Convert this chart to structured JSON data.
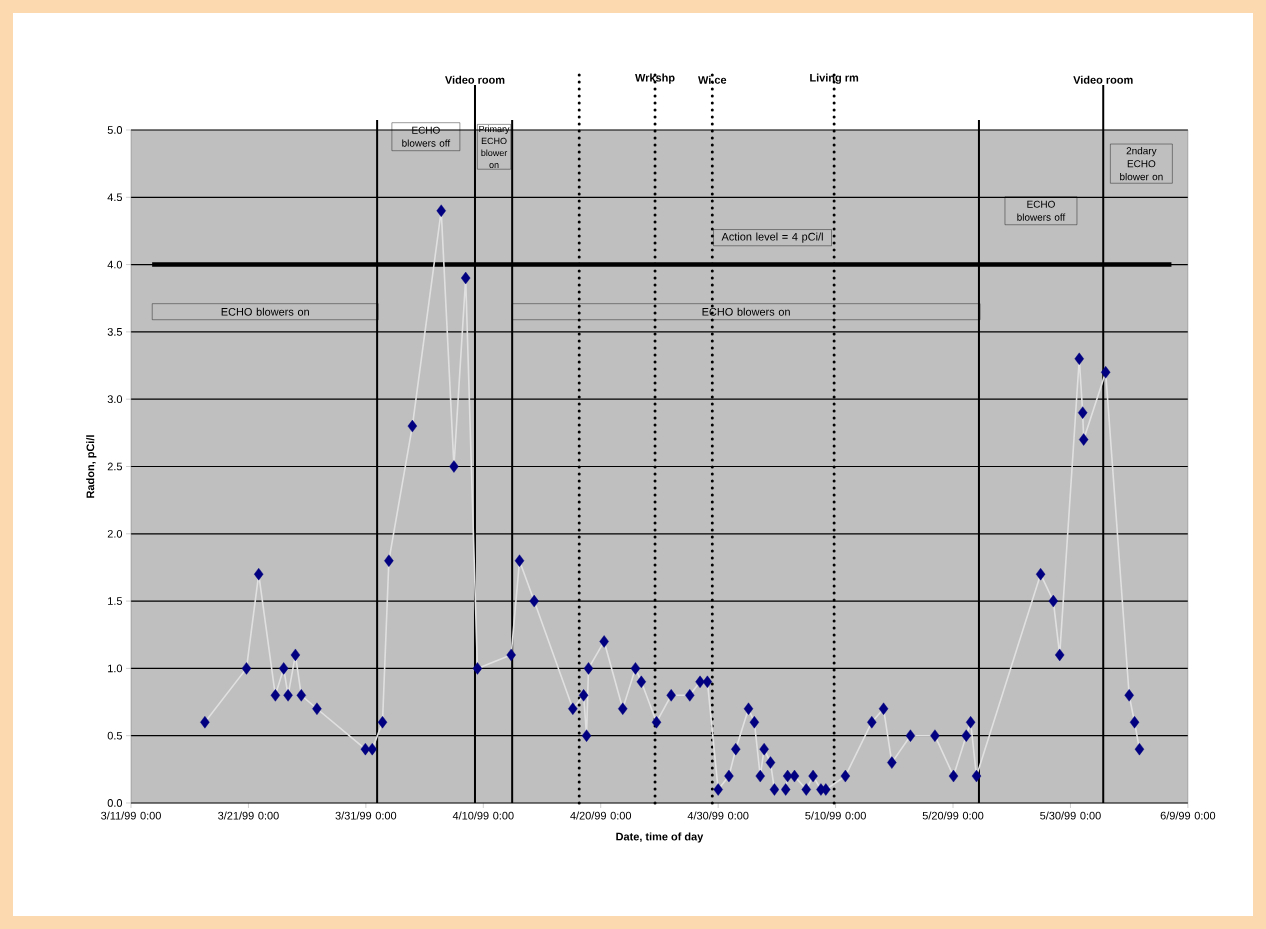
{
  "chart_data": {
    "type": "line",
    "xlabel": "Date, time of day",
    "ylabel": "Radon, pCi/l",
    "x": [
      "1999-03-17T07:00",
      "1999-03-20T20:00",
      "1999-03-21T21:00",
      "1999-03-23T07:00",
      "1999-03-24T00:00",
      "1999-03-24T09:00",
      "1999-03-25T00:00",
      "1999-03-25T12:00",
      "1999-03-26T20:00",
      "1999-03-30T23:00",
      "1999-03-31T13:00",
      "1999-04-01T10:00",
      "1999-04-01T23:00",
      "1999-04-03T23:00",
      "1999-04-06T10:00",
      "1999-04-07T12:00",
      "1999-04-08T12:00",
      "1999-04-09T12:00",
      "1999-04-12T09:00",
      "1999-04-13T02:00",
      "1999-04-14T08:00",
      "1999-04-17T15:00",
      "1999-04-18T13:00",
      "1999-04-18T19:00",
      "1999-04-18T23:00",
      "1999-04-20T07:00",
      "1999-04-21T21:00",
      "1999-04-22T23:00",
      "1999-04-23T11:00",
      "1999-04-24T18:00",
      "1999-04-26T00:00",
      "1999-04-27T14:00",
      "1999-04-28T11:00",
      "1999-04-29T02:00",
      "1999-04-30T00:00",
      "1999-04-30T22:00",
      "1999-05-01T12:00",
      "1999-05-02T14:00",
      "1999-05-03T02:00",
      "1999-05-03T14:00",
      "1999-05-03T22:00",
      "1999-05-04T11:00",
      "1999-05-04T19:00",
      "1999-05-05T18:00",
      "1999-05-05T22:00",
      "1999-05-06T12:00",
      "1999-05-07T12:00",
      "1999-05-08T02:00",
      "1999-05-08T18:00",
      "1999-05-09T04:00",
      "1999-05-10T20:00",
      "1999-05-13T02:00",
      "1999-05-14T02:00",
      "1999-05-14T19:00",
      "1999-05-16T09:00",
      "1999-05-18T11:00",
      "1999-05-20T01:00",
      "1999-05-21T03:00",
      "1999-05-21T12:00",
      "1999-05-22T00:00",
      "1999-05-27T11:00",
      "1999-05-28T13:00",
      "1999-05-29T02:00",
      "1999-05-30T18:00",
      "1999-05-31T01:00",
      "1999-05-31T03:00",
      "1999-06-02T00:00",
      "1999-06-04T00:00",
      "1999-06-04T11:00",
      "1999-06-04T21:00"
    ],
    "series": [
      {
        "color": "#000080",
        "values": [
          0.6,
          1.0,
          1.7,
          0.8,
          1.0,
          0.8,
          1.1,
          0.8,
          0.7,
          0.4,
          0.4,
          0.6,
          1.8,
          2.8,
          4.4,
          2.5,
          3.9,
          1.0,
          1.1,
          1.8,
          1.5,
          0.7,
          0.8,
          0.5,
          1.0,
          1.2,
          0.7,
          1.0,
          0.9,
          0.6,
          0.8,
          0.8,
          0.9,
          0.9,
          0.1,
          0.2,
          0.4,
          0.7,
          0.6,
          0.2,
          0.4,
          0.3,
          0.1,
          0.1,
          0.2,
          0.2,
          0.1,
          0.2,
          0.1,
          0.1,
          0.2,
          0.6,
          0.7,
          0.3,
          0.5,
          0.5,
          0.2,
          0.5,
          0.6,
          0.2,
          1.7,
          1.5,
          1.1,
          3.3,
          2.9,
          2.7,
          3.2,
          0.8,
          0.6,
          0.4
        ]
      }
    ],
    "marker": "diamond",
    "grid": "y",
    "xlim": [
      "1999-03-11",
      "1999-06-09"
    ],
    "xticks": [
      {
        "value": "1999-03-11",
        "label": "3/11/99 0:00"
      },
      {
        "value": "1999-03-21",
        "label": "3/21/99 0:00"
      },
      {
        "value": "1999-03-31",
        "label": "3/31/99 0:00"
      },
      {
        "value": "1999-04-10",
        "label": "4/10/99 0:00"
      },
      {
        "value": "1999-04-20",
        "label": "4/20/99 0:00"
      },
      {
        "value": "1999-04-30",
        "label": "4/30/99 0:00"
      },
      {
        "value": "1999-05-10",
        "label": "5/10/99 0:00"
      },
      {
        "value": "1999-05-20",
        "label": "5/20/99 0:00"
      },
      {
        "value": "1999-05-30",
        "label": "5/30/99 0:00"
      },
      {
        "value": "1999-06-09",
        "label": "6/9/99 0:00"
      }
    ],
    "ylim": [
      0,
      5
    ],
    "yticks": [
      {
        "value": 0,
        "label": "0.0"
      },
      {
        "value": 0.5,
        "label": "0.5"
      },
      {
        "value": 1,
        "label": "1.0"
      },
      {
        "value": 1.5,
        "label": "1.5"
      },
      {
        "value": 2,
        "label": "2.0"
      },
      {
        "value": 2.5,
        "label": "2.5"
      },
      {
        "value": 3,
        "label": "3.0"
      },
      {
        "value": 3.5,
        "label": "3.5"
      },
      {
        "value": 4,
        "label": "4.0"
      },
      {
        "value": 4.5,
        "label": "4.5"
      },
      {
        "value": 5,
        "label": "5.0"
      }
    ],
    "ref_lines": [
      {
        "axis": "y",
        "value": 4,
        "color": "#000000",
        "line_style": "solid"
      },
      {
        "axis": "x",
        "value": "1999-03-31T23:00",
        "color": "#000000",
        "line_style": "solid"
      },
      {
        "axis": "x",
        "value": "1999-04-09T07:00",
        "color": "#000000",
        "line_style": "solid",
        "label": "Video room"
      },
      {
        "axis": "x",
        "value": "1999-04-12T11:00",
        "color": "#000000",
        "line_style": "solid"
      },
      {
        "axis": "x",
        "value": "1999-04-18T04:00",
        "color": "#000000",
        "line_style": "dotted"
      },
      {
        "axis": "x",
        "value": "1999-04-24T15:00",
        "color": "#000000",
        "line_style": "dotted",
        "label": "Wrkshp"
      },
      {
        "axis": "x",
        "value": "1999-04-29T12:00",
        "color": "#000000",
        "line_style": "dotted",
        "label": "Wi.ce"
      },
      {
        "axis": "x",
        "value": "1999-05-09T21:00",
        "color": "#000000",
        "line_style": "dotted",
        "label": "Living rm"
      },
      {
        "axis": "x",
        "value": "1999-05-22T05:00",
        "color": "#000000",
        "line_style": "solid"
      },
      {
        "axis": "x",
        "value": "1999-06-01T19:00",
        "color": "#000000",
        "line_style": "solid",
        "label": "Video room"
      }
    ],
    "annotations": [
      "ECHO blowers on",
      "ECHO blowers off",
      "Primary ECHO blower on",
      "ECHO blowers on",
      "Action level = 4 pCi/l",
      "ECHO blowers off",
      "2ndary ECHO blower on"
    ]
  }
}
